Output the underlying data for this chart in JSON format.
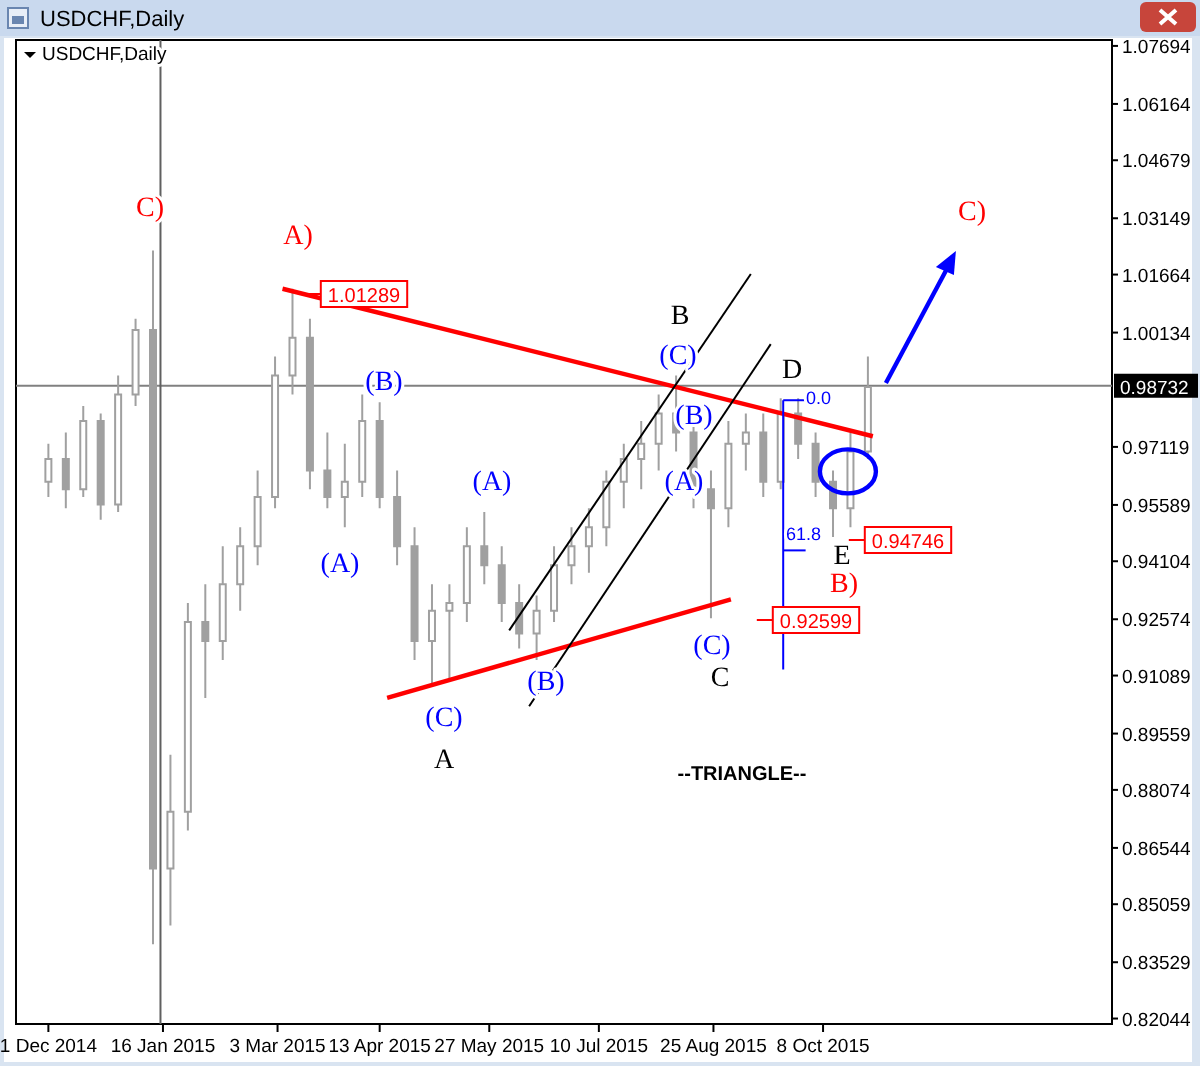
{
  "chart_data": {
    "type": "candlestick",
    "title": "USDCHF,Daily",
    "color": "#a0a0a0",
    "x": [
      "2014-12-01",
      "2014-12-08",
      "2014-12-15",
      "2014-12-22",
      "2014-12-29",
      "2015-01-05",
      "2015-01-12",
      "2015-01-19",
      "2015-01-26",
      "2015-02-02",
      "2015-02-09",
      "2015-02-16",
      "2015-02-23",
      "2015-03-02",
      "2015-03-09",
      "2015-03-16",
      "2015-03-23",
      "2015-03-30",
      "2015-04-06",
      "2015-04-13",
      "2015-04-20",
      "2015-04-27",
      "2015-05-04",
      "2015-05-11",
      "2015-05-18",
      "2015-05-25",
      "2015-06-01",
      "2015-06-08",
      "2015-06-15",
      "2015-06-22",
      "2015-06-29",
      "2015-07-06",
      "2015-07-13",
      "2015-07-20",
      "2015-07-27",
      "2015-08-03",
      "2015-08-10",
      "2015-08-17",
      "2015-08-24",
      "2015-08-31",
      "2015-09-07",
      "2015-09-14",
      "2015-09-21",
      "2015-09-28",
      "2015-10-05",
      "2015-10-12",
      "2015-10-19",
      "2015-10-26"
    ],
    "ohlc": [
      [
        0.962,
        0.972,
        0.958,
        0.968
      ],
      [
        0.968,
        0.975,
        0.955,
        0.96
      ],
      [
        0.96,
        0.982,
        0.958,
        0.978
      ],
      [
        0.978,
        0.98,
        0.952,
        0.956
      ],
      [
        0.956,
        0.99,
        0.954,
        0.985
      ],
      [
        0.985,
        1.005,
        0.982,
        1.002
      ],
      [
        1.002,
        1.023,
        0.84,
        0.86
      ],
      [
        0.86,
        0.89,
        0.845,
        0.875
      ],
      [
        0.875,
        0.93,
        0.87,
        0.925
      ],
      [
        0.925,
        0.935,
        0.905,
        0.92
      ],
      [
        0.92,
        0.945,
        0.915,
        0.935
      ],
      [
        0.935,
        0.95,
        0.928,
        0.945
      ],
      [
        0.945,
        0.965,
        0.94,
        0.958
      ],
      [
        0.958,
        0.995,
        0.955,
        0.99
      ],
      [
        0.99,
        1.01289,
        0.985,
        1.0
      ],
      [
        1.0,
        1.005,
        0.96,
        0.965
      ],
      [
        0.965,
        0.975,
        0.955,
        0.958
      ],
      [
        0.958,
        0.972,
        0.95,
        0.962
      ],
      [
        0.962,
        0.985,
        0.958,
        0.978
      ],
      [
        0.978,
        0.983,
        0.955,
        0.958
      ],
      [
        0.958,
        0.965,
        0.94,
        0.945
      ],
      [
        0.945,
        0.95,
        0.915,
        0.92
      ],
      [
        0.92,
        0.935,
        0.908,
        0.928
      ],
      [
        0.928,
        0.935,
        0.91,
        0.93
      ],
      [
        0.93,
        0.95,
        0.925,
        0.945
      ],
      [
        0.945,
        0.954,
        0.935,
        0.94
      ],
      [
        0.94,
        0.945,
        0.925,
        0.93
      ],
      [
        0.93,
        0.935,
        0.918,
        0.922
      ],
      [
        0.922,
        0.932,
        0.915,
        0.928
      ],
      [
        0.928,
        0.945,
        0.925,
        0.94
      ],
      [
        0.94,
        0.95,
        0.935,
        0.945
      ],
      [
        0.945,
        0.955,
        0.938,
        0.95
      ],
      [
        0.95,
        0.965,
        0.945,
        0.962
      ],
      [
        0.962,
        0.972,
        0.955,
        0.968
      ],
      [
        0.968,
        0.978,
        0.96,
        0.972
      ],
      [
        0.972,
        0.985,
        0.965,
        0.98
      ],
      [
        0.98,
        0.99,
        0.97,
        0.975
      ],
      [
        0.975,
        0.978,
        0.955,
        0.96
      ],
      [
        0.96,
        0.965,
        0.92599,
        0.955
      ],
      [
        0.955,
        0.978,
        0.95,
        0.972
      ],
      [
        0.972,
        0.98,
        0.965,
        0.975
      ],
      [
        0.975,
        0.98,
        0.958,
        0.962
      ],
      [
        0.962,
        0.984,
        0.96,
        0.98
      ],
      [
        0.98,
        0.984,
        0.968,
        0.972
      ],
      [
        0.972,
        0.975,
        0.958,
        0.962
      ],
      [
        0.962,
        0.965,
        0.94746,
        0.955
      ],
      [
        0.955,
        0.975,
        0.95,
        0.97
      ],
      [
        0.97,
        0.995,
        0.968,
        0.987
      ]
    ],
    "series": [
      {
        "type": "line",
        "color": "#ff0000",
        "x": [
          "2015-03-05",
          "2015-10-28"
        ],
        "values": [
          1.0129,
          0.974
        ]
      },
      {
        "type": "line",
        "color": "#ff0000",
        "x": [
          "2015-04-16",
          "2015-09-01"
        ],
        "values": [
          0.905,
          0.931
        ]
      },
      {
        "type": "line",
        "color": "#000000",
        "x": [
          "2015-06-04",
          "2015-09-09"
        ],
        "values": [
          0.9228,
          1.0168
        ]
      },
      {
        "type": "line",
        "color": "#000000",
        "x": [
          "2015-06-12",
          "2015-09-17"
        ],
        "values": [
          0.9028,
          0.9983
        ]
      },
      {
        "type": "line",
        "color": "#0000ff",
        "x": [
          "2015-09-22",
          "2015-09-22"
        ],
        "values": [
          0.9835,
          0.9125
        ]
      },
      {
        "type": "line",
        "color": "#0000ff",
        "x": [
          "2015-09-22",
          "2015-10-01"
        ],
        "values": [
          0.9835,
          0.9835
        ]
      },
      {
        "type": "line",
        "color": "#0000ff",
        "x": [
          "2015-09-22",
          "2015-10-01"
        ],
        "values": [
          0.9439,
          0.9439
        ]
      }
    ],
    "xlim": [
      "2014-11-18",
      "2016-02-01"
    ],
    "xticks": [
      {
        "value": "2014-12-01",
        "label": "1 Dec 2014"
      },
      {
        "value": "2015-01-16",
        "label": "16 Jan 2015"
      },
      {
        "value": "2015-03-03",
        "label": "3 Mar 2015"
      },
      {
        "value": "2015-04-13",
        "label": "13 Apr 2015"
      },
      {
        "value": "2015-05-27",
        "label": "27 May 2015"
      },
      {
        "value": "2015-07-10",
        "label": "10 Jul 2015"
      },
      {
        "value": "2015-08-25",
        "label": "25 Aug 2015"
      },
      {
        "value": "2015-10-08",
        "label": "8 Oct 2015"
      }
    ],
    "ylim": [
      0.819,
      1.0785
    ],
    "yticks": [
      0.82044,
      0.83529,
      0.85059,
      0.86544,
      0.88074,
      0.89559,
      0.91089,
      0.92574,
      0.94104,
      0.95589,
      0.97119,
      1.00134,
      1.01664,
      1.03149,
      1.04679,
      1.06164,
      1.07694
    ],
    "ref_lines": [
      {
        "axis": "y",
        "value": 0.98732,
        "label": "0.98732",
        "color": "#808080"
      },
      {
        "axis": "x",
        "value": "2015-01-15",
        "color": "#606060"
      }
    ],
    "grid": false,
    "annotations": [
      "USDCHF,Daily",
      "C)",
      "A)",
      "1.01289",
      "(B)",
      "(A)",
      "(C)",
      "A",
      "(A)",
      "(B)",
      "B",
      "(C)",
      "(B)",
      "(A)",
      "(C)",
      "C",
      "0.92599",
      "0.0",
      "61.8",
      "D",
      "E",
      "B)",
      "0.94746",
      "C)",
      "--TRIANGLE--"
    ]
  }
}
